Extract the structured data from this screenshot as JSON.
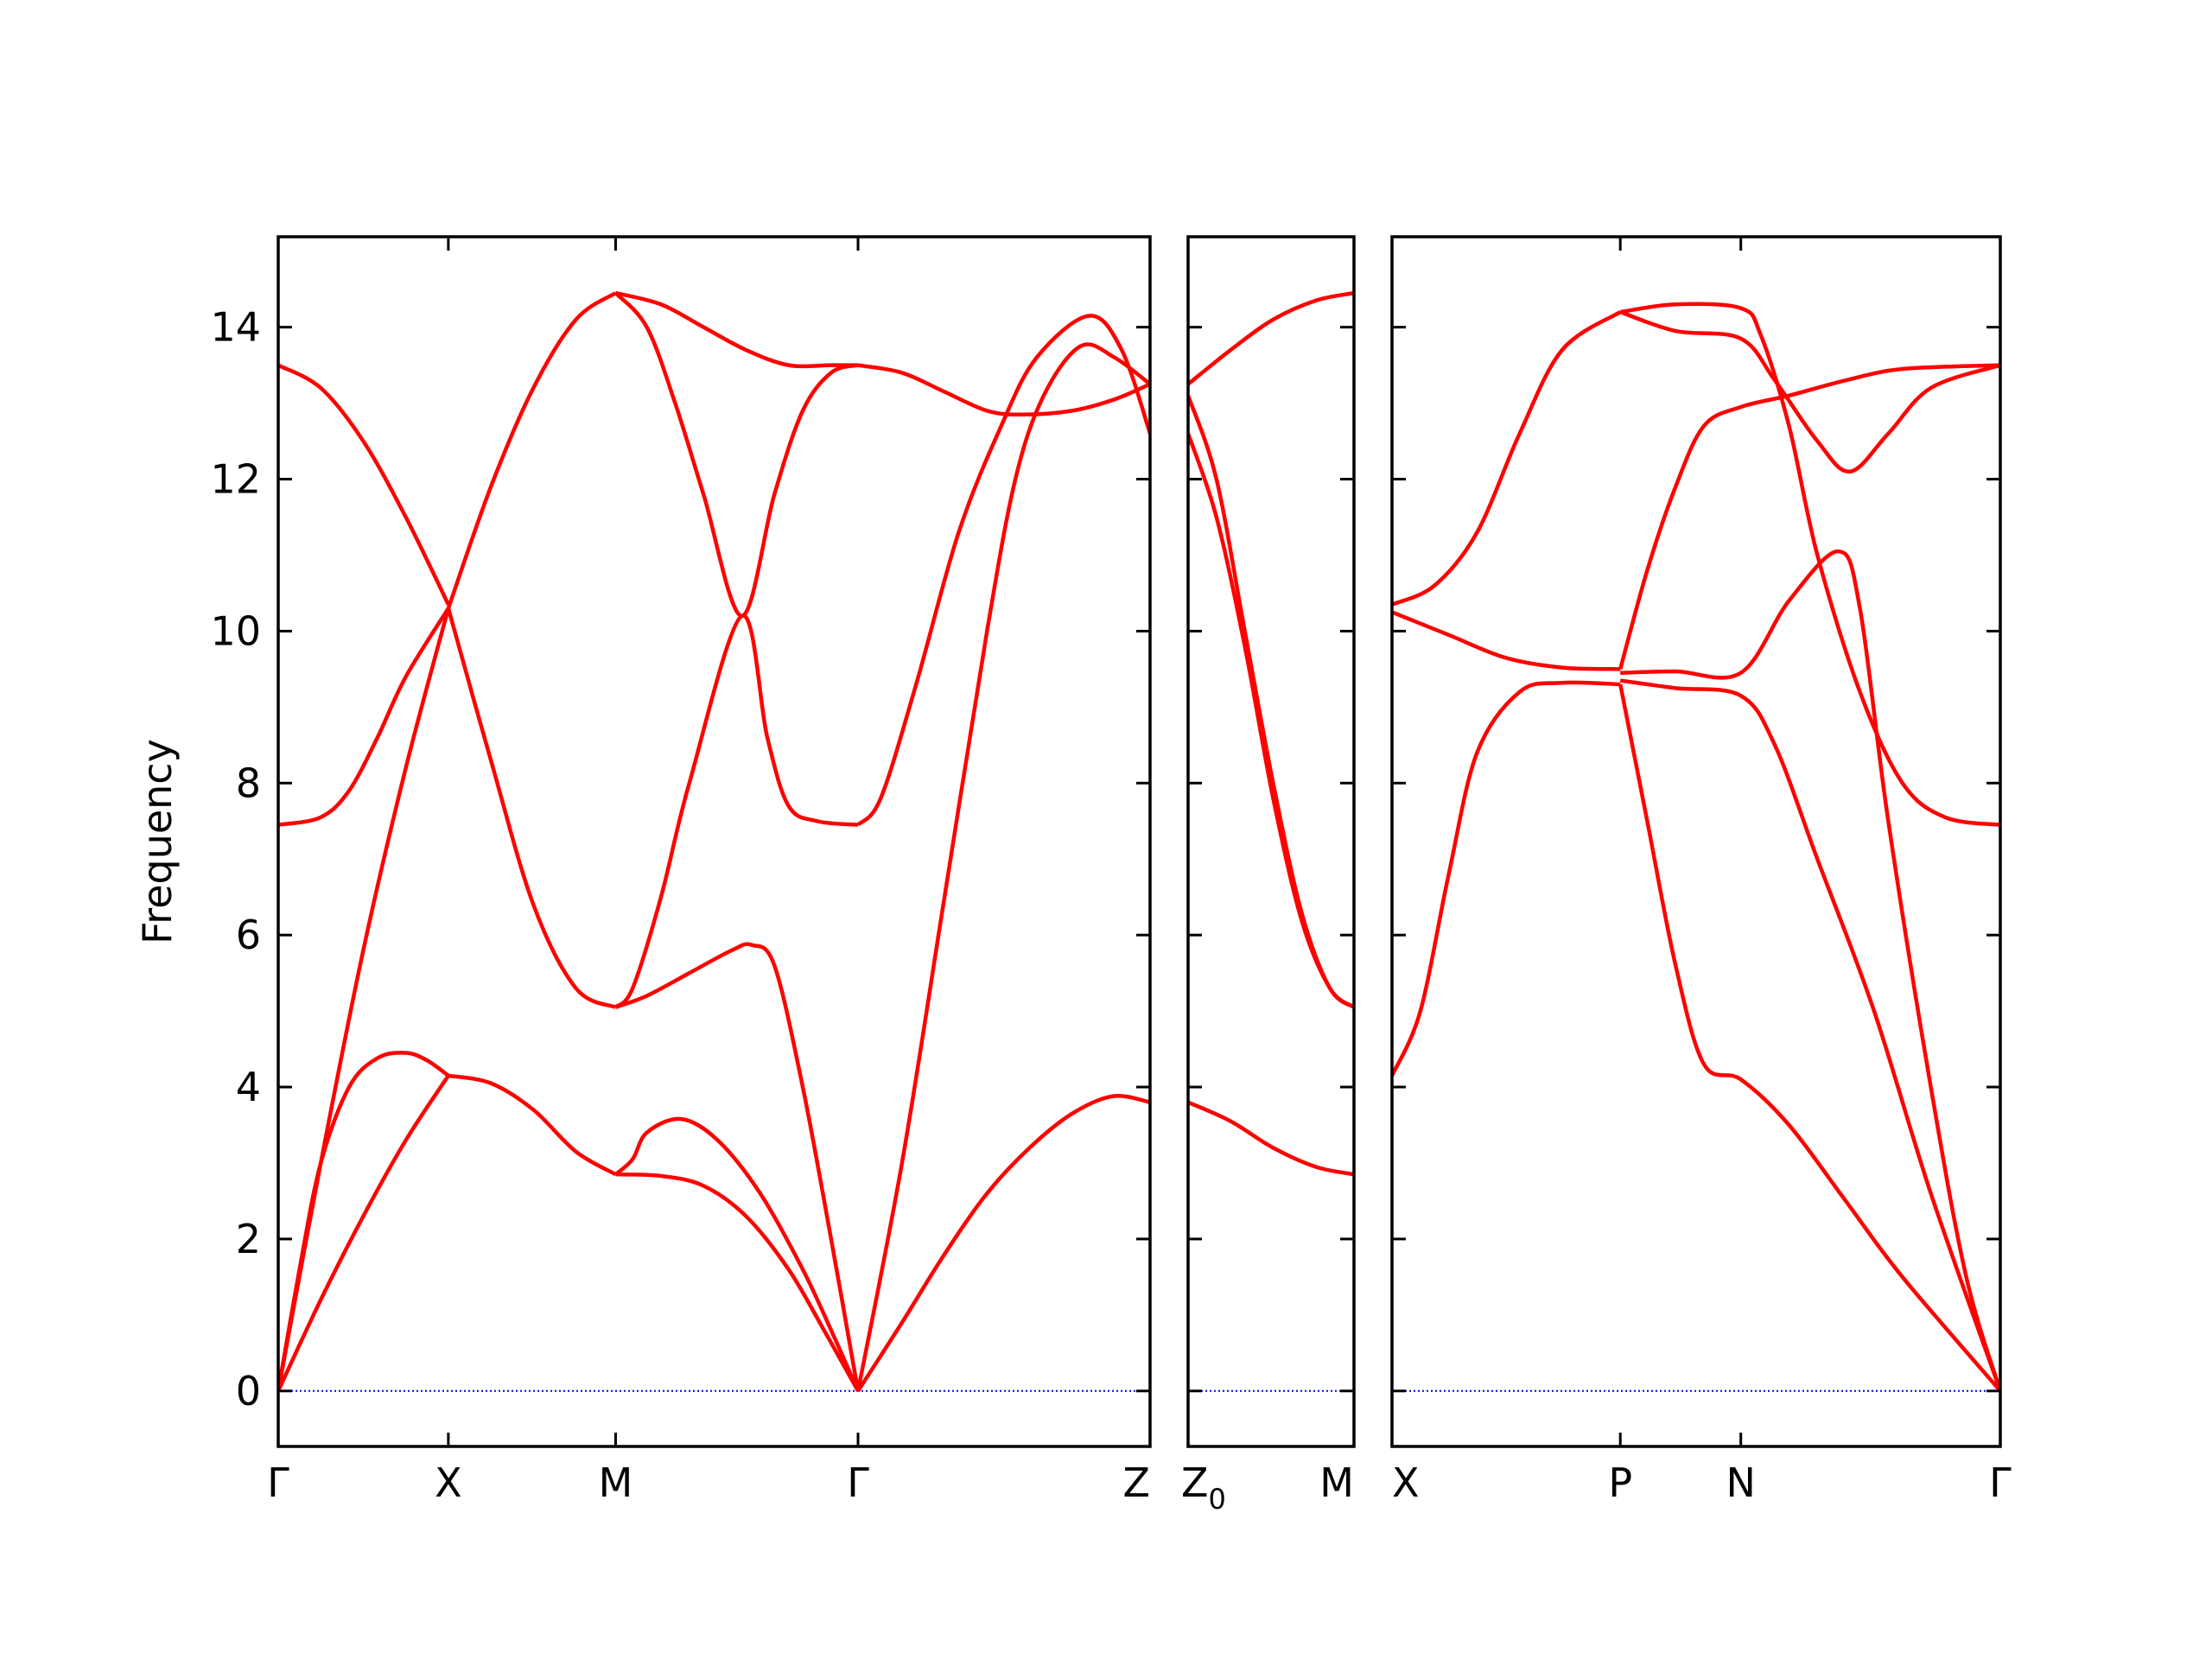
{
  "chart_data": {
    "type": "line",
    "title": "",
    "ylabel": "Frequency",
    "ylim": [
      -0.73,
      15.19
    ],
    "yticks": [
      0,
      2,
      4,
      6,
      8,
      10,
      12,
      14
    ],
    "grid": false,
    "colors": {
      "bands": "#ff0000",
      "zero_line": "#0000ff",
      "frame": "#000000"
    },
    "panels": [
      {
        "xlim": [
          0,
          6.15
        ],
        "ticks": [
          {
            "x": 0,
            "label": "Γ"
          },
          {
            "x": 1.2,
            "label": "X"
          },
          {
            "x": 2.38,
            "label": "M"
          },
          {
            "x": 4.09,
            "label": "Γ"
          },
          {
            "x": 6.15,
            "label": "Z"
          }
        ],
        "bands": [
          [
            [
              0,
              0
            ],
            [
              0.3,
              1.2
            ],
            [
              0.6,
              2.3
            ],
            [
              0.9,
              3.3
            ],
            [
              1.2,
              4.15
            ]
          ],
          [
            [
              0,
              0
            ],
            [
              0.15,
              1.6
            ],
            [
              0.3,
              3.0
            ],
            [
              0.5,
              4.0
            ],
            [
              0.7,
              4.38
            ],
            [
              0.9,
              4.45
            ],
            [
              1.05,
              4.35
            ],
            [
              1.2,
              4.15
            ]
          ],
          [
            [
              0,
              0
            ],
            [
              0.3,
              3.0
            ],
            [
              0.6,
              5.8
            ],
            [
              0.9,
              8.2
            ],
            [
              1.2,
              10.3
            ]
          ],
          [
            [
              0,
              7.45
            ],
            [
              0.3,
              7.55
            ],
            [
              0.5,
              7.9
            ],
            [
              0.7,
              8.6
            ],
            [
              0.9,
              9.4
            ],
            [
              1.2,
              10.3
            ]
          ],
          [
            [
              0,
              13.5
            ],
            [
              0.3,
              13.2
            ],
            [
              0.6,
              12.5
            ],
            [
              0.9,
              11.5
            ],
            [
              1.2,
              10.35
            ]
          ],
          [
            [
              1.2,
              4.15
            ],
            [
              1.5,
              4.05
            ],
            [
              1.8,
              3.7
            ],
            [
              2.1,
              3.15
            ],
            [
              2.38,
              2.85
            ]
          ],
          [
            [
              1.2,
              10.3
            ],
            [
              1.5,
              11.9
            ],
            [
              1.8,
              13.2
            ],
            [
              2.1,
              14.1
            ],
            [
              2.38,
              14.45
            ]
          ],
          [
            [
              1.2,
              10.3
            ],
            [
              1.5,
              8.3
            ],
            [
              1.8,
              6.4
            ],
            [
              2.1,
              5.3
            ],
            [
              2.38,
              5.05
            ]
          ],
          [
            [
              2.38,
              14.45
            ],
            [
              2.7,
              14.3
            ],
            [
              3.0,
              14.0
            ],
            [
              3.3,
              13.7
            ],
            [
              3.6,
              13.5
            ],
            [
              3.9,
              13.5
            ],
            [
              4.09,
              13.5
            ]
          ],
          [
            [
              2.38,
              14.45
            ],
            [
              2.6,
              14.0
            ],
            [
              2.8,
              13.0
            ],
            [
              3.0,
              11.8
            ],
            [
              3.27,
              10.2
            ],
            [
              3.5,
              11.8
            ],
            [
              3.7,
              12.9
            ],
            [
              3.9,
              13.4
            ],
            [
              4.09,
              13.5
            ]
          ],
          [
            [
              2.38,
              5.05
            ],
            [
              2.5,
              5.3
            ],
            [
              2.7,
              6.5
            ],
            [
              2.9,
              8.0
            ],
            [
              3.27,
              10.2
            ],
            [
              3.45,
              8.6
            ],
            [
              3.6,
              7.7
            ],
            [
              3.8,
              7.5
            ],
            [
              4.09,
              7.45
            ]
          ],
          [
            [
              2.38,
              5.05
            ],
            [
              2.6,
              5.2
            ],
            [
              2.9,
              5.5
            ],
            [
              3.2,
              5.8
            ],
            [
              3.34,
              5.87
            ],
            [
              3.5,
              5.6
            ],
            [
              3.7,
              4.0
            ],
            [
              3.9,
              2.0
            ],
            [
              4.09,
              0
            ]
          ],
          [
            [
              2.38,
              2.85
            ],
            [
              2.5,
              3.05
            ],
            [
              2.6,
              3.4
            ],
            [
              2.84,
              3.58
            ],
            [
              3.1,
              3.3
            ],
            [
              3.4,
              2.6
            ],
            [
              3.7,
              1.6
            ],
            [
              3.9,
              0.8
            ],
            [
              4.09,
              0
            ]
          ],
          [
            [
              2.38,
              2.85
            ],
            [
              2.7,
              2.83
            ],
            [
              3.0,
              2.7
            ],
            [
              3.3,
              2.3
            ],
            [
              3.6,
              1.6
            ],
            [
              3.85,
              0.8
            ],
            [
              4.09,
              0
            ]
          ],
          [
            [
              4.09,
              0
            ],
            [
              4.4,
              0.9
            ],
            [
              4.7,
              1.8
            ],
            [
              5.0,
              2.6
            ],
            [
              5.3,
              3.2
            ],
            [
              5.6,
              3.65
            ],
            [
              5.89,
              3.88
            ],
            [
              6.15,
              3.8
            ]
          ],
          [
            [
              4.09,
              13.5
            ],
            [
              4.4,
              13.4
            ],
            [
              4.7,
              13.15
            ],
            [
              5.0,
              12.9
            ],
            [
              5.25,
              12.85
            ],
            [
              5.6,
              12.9
            ],
            [
              5.9,
              13.05
            ],
            [
              6.15,
              13.25
            ]
          ],
          [
            [
              4.09,
              0
            ],
            [
              4.4,
              3.0
            ],
            [
              4.7,
              6.5
            ],
            [
              5.0,
              10.0
            ],
            [
              5.2,
              12.0
            ],
            [
              5.4,
              13.1
            ],
            [
              5.66,
              13.75
            ],
            [
              5.9,
              13.6
            ],
            [
              6.15,
              13.25
            ]
          ],
          [
            [
              4.09,
              7.45
            ],
            [
              4.25,
              7.8
            ],
            [
              4.5,
              9.3
            ],
            [
              4.8,
              11.3
            ],
            [
              5.1,
              12.7
            ],
            [
              5.35,
              13.6
            ],
            [
              5.72,
              14.15
            ],
            [
              5.95,
              13.7
            ],
            [
              6.15,
              12.6
            ]
          ]
        ]
      },
      {
        "xlim": [
          0,
          1.17
        ],
        "ticks": [
          {
            "x": 0,
            "label": "Z",
            "sub": "0"
          },
          {
            "x": 1.17,
            "label": "M"
          }
        ],
        "bands": [
          [
            [
              0,
              13.25
            ],
            [
              0.3,
              13.7
            ],
            [
              0.6,
              14.1
            ],
            [
              0.9,
              14.35
            ],
            [
              1.17,
              14.45
            ]
          ],
          [
            [
              0,
              13.1
            ],
            [
              0.2,
              12.0
            ],
            [
              0.4,
              10.0
            ],
            [
              0.6,
              8.0
            ],
            [
              0.8,
              6.3
            ],
            [
              1.0,
              5.3
            ],
            [
              1.17,
              5.05
            ]
          ],
          [
            [
              0,
              12.6
            ],
            [
              0.2,
              11.5
            ],
            [
              0.4,
              9.8
            ],
            [
              0.6,
              7.8
            ],
            [
              0.8,
              6.2
            ],
            [
              1.0,
              5.3
            ],
            [
              1.17,
              5.05
            ]
          ],
          [
            [
              0,
              3.8
            ],
            [
              0.3,
              3.55
            ],
            [
              0.6,
              3.2
            ],
            [
              0.9,
              2.95
            ],
            [
              1.17,
              2.85
            ]
          ]
        ]
      },
      {
        "xlim": [
          0,
          4.29
        ],
        "ticks": [
          {
            "x": 0,
            "label": "X"
          },
          {
            "x": 1.61,
            "label": "P"
          },
          {
            "x": 2.46,
            "label": "N"
          },
          {
            "x": 4.29,
            "label": "Γ"
          }
        ],
        "bands": [
          [
            [
              0,
              10.35
            ],
            [
              0.3,
              10.6
            ],
            [
              0.6,
              11.3
            ],
            [
              0.9,
              12.6
            ],
            [
              1.2,
              13.7
            ],
            [
              1.61,
              14.2
            ]
          ],
          [
            [
              0,
              10.25
            ],
            [
              0.4,
              9.95
            ],
            [
              0.8,
              9.65
            ],
            [
              1.2,
              9.52
            ],
            [
              1.61,
              9.5
            ]
          ],
          [
            [
              0,
              4.15
            ],
            [
              0.2,
              5.0
            ],
            [
              0.4,
              6.8
            ],
            [
              0.6,
              8.4
            ],
            [
              0.9,
              9.2
            ],
            [
              1.2,
              9.32
            ],
            [
              1.61,
              9.3
            ]
          ],
          [
            [
              1.61,
              14.2
            ],
            [
              2.0,
              14.3
            ],
            [
              2.46,
              14.25
            ],
            [
              2.6,
              13.9
            ],
            [
              2.8,
              12.7
            ],
            [
              3.0,
              11.0
            ],
            [
              3.3,
              9.2
            ],
            [
              3.6,
              8.0
            ],
            [
              3.9,
              7.55
            ],
            [
              4.29,
              7.45
            ]
          ],
          [
            [
              1.61,
              14.2
            ],
            [
              2.0,
              13.95
            ],
            [
              2.46,
              13.85
            ],
            [
              2.7,
              13.3
            ],
            [
              3.0,
              12.5
            ],
            [
              3.23,
              12.1
            ],
            [
              3.5,
              12.6
            ],
            [
              3.8,
              13.2
            ],
            [
              4.29,
              13.5
            ]
          ],
          [
            [
              1.61,
              9.5
            ],
            [
              1.8,
              10.8
            ],
            [
              2.0,
              11.9
            ],
            [
              2.2,
              12.7
            ],
            [
              2.46,
              12.95
            ],
            [
              2.8,
              13.1
            ],
            [
              3.2,
              13.3
            ],
            [
              3.6,
              13.45
            ],
            [
              4.29,
              13.5
            ]
          ],
          [
            [
              1.61,
              9.45
            ],
            [
              2.0,
              9.47
            ],
            [
              2.46,
              9.45
            ],
            [
              2.8,
              10.4
            ],
            [
              3.15,
              11.05
            ],
            [
              3.3,
              10.3
            ],
            [
              3.5,
              7.5
            ],
            [
              3.8,
              4.0
            ],
            [
              4.05,
              1.5
            ],
            [
              4.29,
              0
            ]
          ],
          [
            [
              1.61,
              9.35
            ],
            [
              2.0,
              9.25
            ],
            [
              2.46,
              9.15
            ],
            [
              2.7,
              8.5
            ],
            [
              3.0,
              7.0
            ],
            [
              3.4,
              5.0
            ],
            [
              3.8,
              2.6
            ],
            [
              4.29,
              0
            ]
          ],
          [
            [
              1.61,
              9.3
            ],
            [
              1.8,
              7.5
            ],
            [
              2.0,
              5.6
            ],
            [
              2.2,
              4.3
            ],
            [
              2.46,
              4.1
            ],
            [
              2.8,
              3.5
            ],
            [
              3.2,
              2.5
            ],
            [
              3.6,
              1.5
            ],
            [
              4.29,
              0
            ]
          ]
        ]
      }
    ]
  }
}
